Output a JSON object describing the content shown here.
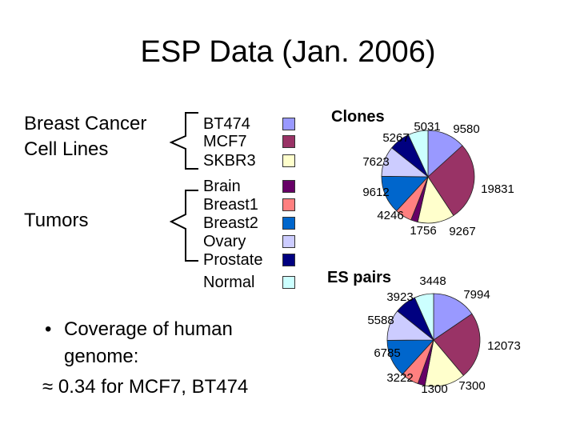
{
  "title": "ESP Data (Jan. 2006)",
  "groups": {
    "cell_lines": "Breast Cancer\nCell Lines",
    "tumors": "Tumors"
  },
  "legend": {
    "labels": [
      "BT474",
      "MCF7",
      "SKBR3",
      "Brain",
      "Breast1",
      "Breast2",
      "Ovary",
      "Prostate",
      "Normal"
    ],
    "colors": [
      "#9999ff",
      "#993366",
      "#ffffcc",
      "#660066",
      "#ff8080",
      "#0066cc",
      "#ccccff",
      "#000080",
      "#ccffff"
    ]
  },
  "bullet": {
    "symbol": "•",
    "line1": "Coverage of human genome:",
    "line2": "≈ 0.34 for MCF7, BT474"
  },
  "chart_data": [
    {
      "type": "pie",
      "title": "Clones",
      "labels": [
        "BT474",
        "MCF7",
        "SKBR3",
        "Brain",
        "Breast1",
        "Breast2",
        "Ovary",
        "Prostate",
        "Normal"
      ],
      "values": [
        9580,
        19831,
        9267,
        1756,
        4246,
        9612,
        7623,
        5267,
        5031
      ]
    },
    {
      "type": "pie",
      "title": "ES pairs",
      "labels": [
        "BT474",
        "MCF7",
        "SKBR3",
        "Brain",
        "Breast1",
        "Breast2",
        "Ovary",
        "Prostate",
        "Normal"
      ],
      "values": [
        7994,
        12073,
        7300,
        1300,
        3222,
        6785,
        5588,
        3923,
        3448
      ]
    }
  ]
}
